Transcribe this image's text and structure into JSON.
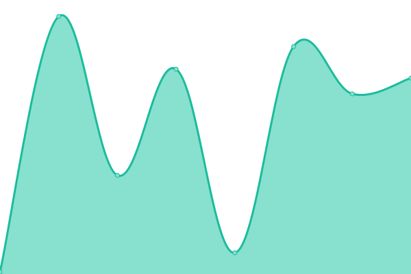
{
  "chart_data": {
    "type": "area",
    "title": "",
    "xlabel": "",
    "ylabel": "",
    "x": [
      0,
      1,
      2,
      3,
      4,
      5,
      6,
      7
    ],
    "series": [
      {
        "values": [
          3,
          376,
          144,
          299,
          31,
          332,
          263,
          286
        ]
      }
    ],
    "xlim": [
      0,
      7
    ],
    "ylim": [
      0,
      400
    ],
    "smooth": true,
    "markers": true,
    "grid": false,
    "axes_visible": false,
    "colors": {
      "line": "#1abc9c",
      "fill": "#88e0cf",
      "marker_fill": "#88e0cf"
    }
  }
}
